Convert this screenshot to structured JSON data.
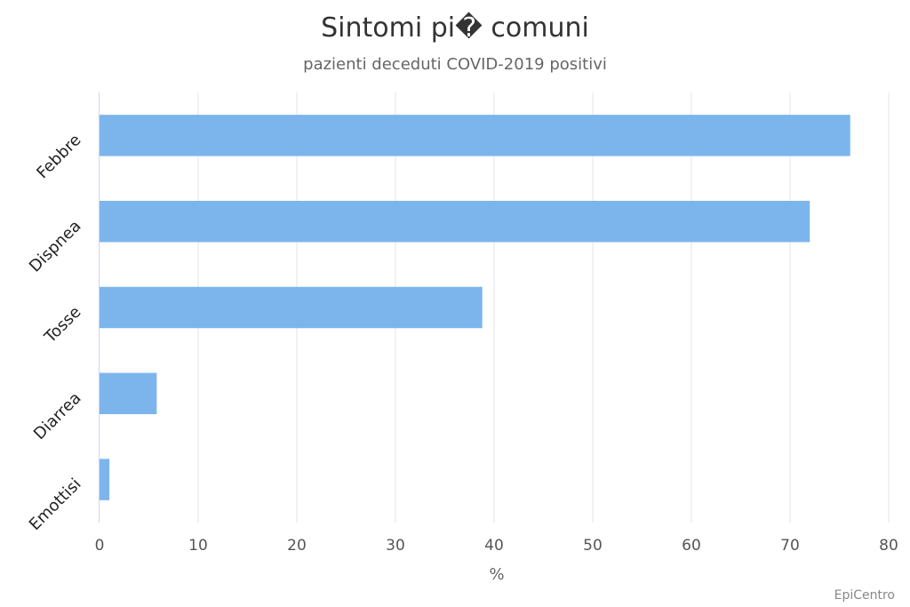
{
  "chart_data": {
    "type": "bar",
    "orientation": "horizontal",
    "title": "Sintomi pi� comuni",
    "subtitle": "pazienti deceduti COVID-2019 positivi",
    "categories": [
      "Febbre",
      "Dispnea",
      "Tosse",
      "Diarrea",
      "Emottisi"
    ],
    "values": [
      76.1,
      72.0,
      38.8,
      5.8,
      1.0
    ],
    "xlabel": "%",
    "ylabel": "",
    "xlim": [
      0,
      80
    ],
    "xticks": [
      0,
      10,
      20,
      30,
      40,
      50,
      60,
      70,
      80
    ],
    "grid": true,
    "legend": "none",
    "bar_color": "#7cb5ec",
    "gridline_color": "#e6e6e6",
    "credit": "EpiCentro"
  }
}
